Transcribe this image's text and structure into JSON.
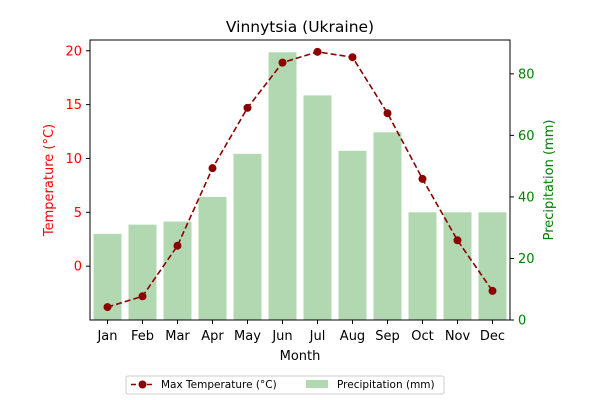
{
  "chart_data": {
    "type": "bar",
    "title": "Vinnytsia (Ukraine)",
    "xlabel": "Month",
    "ylabel_left": "Temperature (°C)",
    "ylabel_right": "Precipitation (mm)",
    "categories": [
      "Jan",
      "Feb",
      "Mar",
      "Apr",
      "May",
      "Jun",
      "Jul",
      "Aug",
      "Sep",
      "Oct",
      "Nov",
      "Dec"
    ],
    "ylim_left": [
      -5,
      21
    ],
    "ylim_right": [
      0,
      91
    ],
    "yticks_left": [
      0,
      5,
      10,
      15,
      20
    ],
    "yticks_right": [
      0,
      20,
      40,
      60,
      80
    ],
    "series": [
      {
        "name": "Max Temperature (°C)",
        "type": "line",
        "axis": "left",
        "color": "#8b0000",
        "style": "dashed",
        "marker": "circle",
        "values": [
          -3.8,
          -2.8,
          1.9,
          9.1,
          14.7,
          18.9,
          19.9,
          19.4,
          14.2,
          8.1,
          2.4,
          -2.3
        ]
      },
      {
        "name": "Precipitation (mm)",
        "type": "bar",
        "axis": "right",
        "color": "#b2d8b2",
        "values": [
          28,
          31,
          32,
          40,
          54,
          87,
          73,
          55,
          61,
          35,
          35,
          35
        ]
      }
    ],
    "left_axis_color": "#ff0000",
    "right_axis_color": "#008000",
    "legend_position": "bottom-center",
    "grid": false
  }
}
